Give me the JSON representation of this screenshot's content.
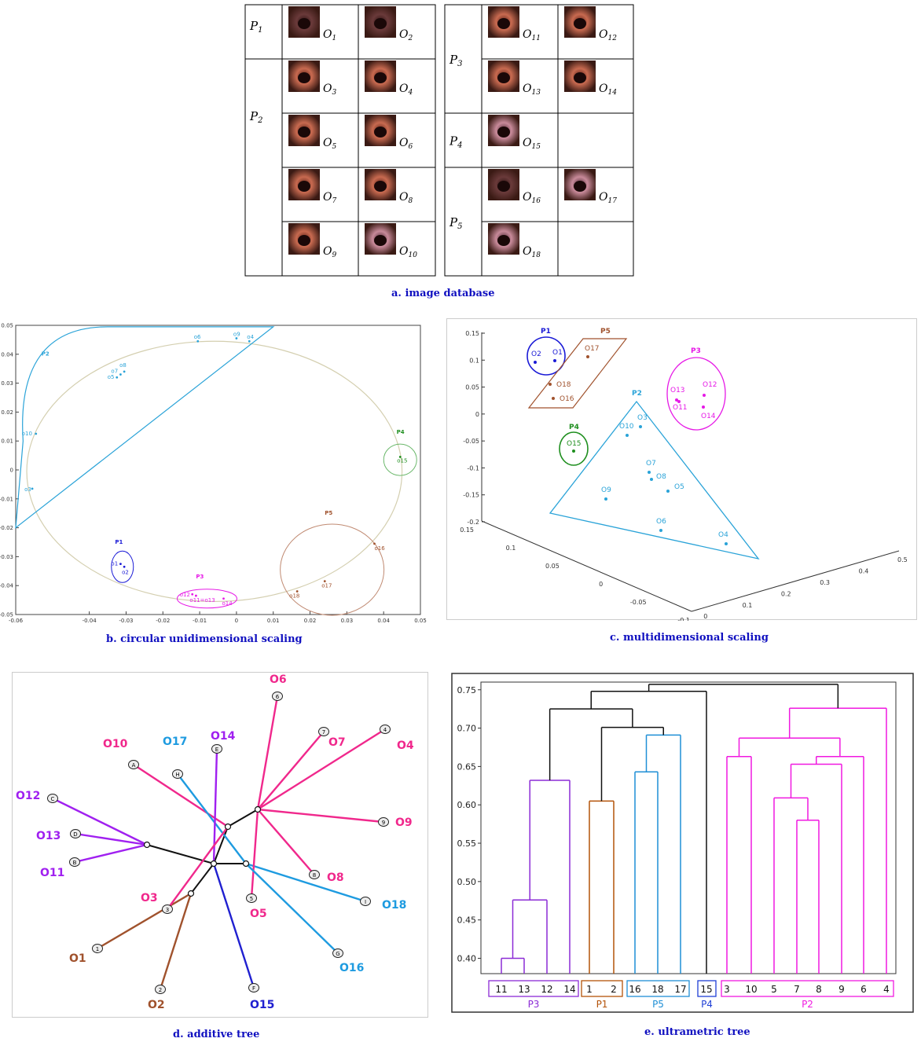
{
  "colors": {
    "P1": "#1a1ad6",
    "P2": "#2aa3d8",
    "P3": "#e619e6",
    "P4": "#1f8f1f",
    "P5": "#a0522d",
    "trunk": "#111111",
    "caption": "#1010c0",
    "tree_P2": "#f0288c",
    "tree_P3": "#a020f0",
    "tree_P5": "#1e9be0",
    "tree_P1": "#a0522d",
    "tree_P4": "#2020d0",
    "dendro_P3": "#8b2bd6",
    "dendro_P1": "#b45309",
    "dendro_P5": "#1f8fd6",
    "dendro_P4": "#1f3fd6",
    "dendro_P2": "#f019e0"
  },
  "captions": {
    "a": "a.   image database",
    "b": "b.   circular unidimensional scaling",
    "c": "c.   multidimensional scaling",
    "d": "d.   additive tree",
    "e": "e.   ultrametric tree"
  },
  "database": {
    "left": [
      {
        "patient": "P",
        "sub": "1",
        "images": [
          {
            "label": "O",
            "sub": "1",
            "tone": "dark"
          },
          {
            "label": "O",
            "sub": "2",
            "tone": "dark"
          }
        ]
      },
      {
        "patient": "P",
        "sub": "2",
        "rows": [
          [
            {
              "label": "O",
              "sub": "3",
              "tone": "red"
            },
            {
              "label": "O",
              "sub": "4",
              "tone": "red"
            }
          ],
          [
            {
              "label": "O",
              "sub": "5",
              "tone": "red"
            },
            {
              "label": "O",
              "sub": "6",
              "tone": "red"
            }
          ],
          [
            {
              "label": "O",
              "sub": "7",
              "tone": "red"
            },
            {
              "label": "O",
              "sub": "8",
              "tone": "red"
            }
          ],
          [
            {
              "label": "O",
              "sub": "9",
              "tone": "red"
            },
            {
              "label": "O",
              "sub": "10",
              "tone": "pink"
            }
          ]
        ]
      }
    ],
    "right": [
      {
        "patient": "P",
        "sub": "3",
        "rows": [
          [
            {
              "label": "O",
              "sub": "11",
              "tone": "red"
            },
            {
              "label": "O",
              "sub": "12",
              "tone": "red"
            }
          ],
          [
            {
              "label": "O",
              "sub": "13",
              "tone": "red"
            },
            {
              "label": "O",
              "sub": "14",
              "tone": "red"
            }
          ]
        ]
      },
      {
        "patient": "P",
        "sub": "4",
        "rows": [
          [
            {
              "label": "O",
              "sub": "15",
              "tone": "pink"
            }
          ]
        ]
      },
      {
        "patient": "P",
        "sub": "5",
        "rows": [
          [
            {
              "label": "O",
              "sub": "16",
              "tone": "dark"
            },
            {
              "label": "O",
              "sub": "17",
              "tone": "pink"
            }
          ],
          [
            {
              "label": "O",
              "sub": "18",
              "tone": "pink"
            }
          ]
        ]
      }
    ]
  },
  "chart_b": {
    "type": "scatter",
    "xlim": [
      -0.06,
      0.05
    ],
    "ylim": [
      -0.05,
      0.05
    ],
    "xticks": [
      "-0.06",
      "-0.04",
      "-0.03",
      "-0.02",
      "-0.01",
      "0",
      "0.01",
      "0.02",
      "0.03",
      "0.04",
      "0.05"
    ],
    "xtick_values": [
      -0.06,
      -0.04,
      -0.03,
      -0.02,
      -0.01,
      0,
      0.01,
      0.02,
      0.03,
      0.04,
      0.05
    ],
    "yticks": [
      "0.05",
      "0.04",
      "0.03",
      "0.02",
      "0.01",
      "0",
      "-0.01",
      "-0.02",
      "-0.03",
      "-0.04",
      "-0.05"
    ],
    "ytick_values": [
      0.05,
      0.04,
      0.03,
      0.02,
      0.01,
      0,
      -0.01,
      -0.02,
      -0.03,
      -0.04,
      -0.05
    ],
    "groups": [
      {
        "name": "P1",
        "color": "P1"
      },
      {
        "name": "P2",
        "color": "P2"
      },
      {
        "name": "P3",
        "color": "P3"
      },
      {
        "name": "P4",
        "color": "P4"
      },
      {
        "name": "P5",
        "color": "P5"
      }
    ],
    "points": [
      {
        "label": "o1",
        "group": "P1",
        "x": -0.0315,
        "y": -0.0325
      },
      {
        "label": "o2",
        "group": "P1",
        "x": -0.0305,
        "y": -0.0335
      },
      {
        "label": "o3",
        "group": "P2",
        "x": -0.0555,
        "y": -0.0065
      },
      {
        "label": "o5",
        "group": "P2",
        "x": -0.0325,
        "y": 0.032
      },
      {
        "label": "o6",
        "group": "P2",
        "x": -0.0105,
        "y": 0.0445
      },
      {
        "label": "o7",
        "group": "P2",
        "x": -0.0315,
        "y": 0.033
      },
      {
        "label": "o8",
        "group": "P2",
        "x": -0.0305,
        "y": 0.034
      },
      {
        "label": "o9",
        "group": "P2",
        "x": 0.0,
        "y": 0.0455
      },
      {
        "label": "o4",
        "group": "P2",
        "x": 0.0035,
        "y": 0.0445
      },
      {
        "label": "o10",
        "group": "P2",
        "x": -0.0545,
        "y": 0.0125
      },
      {
        "label": "o12",
        "group": "P3",
        "x": -0.012,
        "y": -0.043
      },
      {
        "label": "o11=o13",
        "group": "P3",
        "x": -0.011,
        "y": -0.0435
      },
      {
        "label": "o14",
        "group": "P3",
        "x": -0.0035,
        "y": -0.0445
      },
      {
        "label": "o15",
        "group": "P4",
        "x": 0.0445,
        "y": 0.0045
      },
      {
        "label": "o16",
        "group": "P5",
        "x": 0.0375,
        "y": -0.0255
      },
      {
        "label": "o17",
        "group": "P5",
        "x": 0.024,
        "y": -0.0385
      },
      {
        "label": "o18",
        "group": "P5",
        "x": 0.0165,
        "y": -0.042
      }
    ]
  },
  "chart_c": {
    "type": "scatter",
    "yticks": [
      "0.15",
      "0.1",
      "0.05",
      "0",
      "-0.05",
      "-0.1",
      "-0.15",
      "-0.2"
    ],
    "ytick_values": [
      0.15,
      0.1,
      0.05,
      0,
      -0.05,
      -0.1,
      -0.15,
      -0.2
    ],
    "left_axis_ticks": [
      "0.15",
      "0.1",
      "0.05",
      "0",
      "-0.05",
      "-0.1"
    ],
    "right_axis_ticks": [
      "0",
      "0.1",
      "0.2",
      "0.3",
      "0.4",
      "0.5"
    ],
    "groups": [
      "P1",
      "P2",
      "P3",
      "P4",
      "P5"
    ],
    "points": [
      {
        "label": "O1",
        "group": "P1"
      },
      {
        "label": "O2",
        "group": "P1"
      },
      {
        "label": "O17",
        "group": "P5"
      },
      {
        "label": "O18",
        "group": "P5"
      },
      {
        "label": "O16",
        "group": "P5"
      },
      {
        "label": "O13",
        "group": "P3"
      },
      {
        "label": "O12",
        "group": "P3"
      },
      {
        "label": "O11",
        "group": "P3"
      },
      {
        "label": "O14",
        "group": "P3"
      },
      {
        "label": "O3",
        "group": "P2"
      },
      {
        "label": "O10",
        "group": "P2"
      },
      {
        "label": "O7",
        "group": "P2"
      },
      {
        "label": "O8",
        "group": "P2"
      },
      {
        "label": "O5",
        "group": "P2"
      },
      {
        "label": "O9",
        "group": "P2"
      },
      {
        "label": "O6",
        "group": "P2"
      },
      {
        "label": "O4",
        "group": "P2"
      },
      {
        "label": "O15",
        "group": "P4"
      }
    ]
  },
  "additive_tree": {
    "leaves": [
      {
        "node": "A",
        "label": "O10",
        "group": "tree_P2"
      },
      {
        "node": "H",
        "label": "O17",
        "group": "tree_P5"
      },
      {
        "node": "E",
        "label": "O14",
        "group": "tree_P3"
      },
      {
        "node": "6",
        "label": "O6",
        "group": "tree_P2"
      },
      {
        "node": "7",
        "label": "O7",
        "group": "tree_P2"
      },
      {
        "node": "4",
        "label": "O4",
        "group": "tree_P2"
      },
      {
        "node": "9",
        "label": "O9",
        "group": "tree_P2"
      },
      {
        "node": "8",
        "label": "O8",
        "group": "tree_P2"
      },
      {
        "node": "I",
        "label": "O18",
        "group": "tree_P5"
      },
      {
        "node": "5",
        "label": "O5",
        "group": "tree_P2"
      },
      {
        "node": "G",
        "label": "O16",
        "group": "tree_P5"
      },
      {
        "node": "F",
        "label": "O15",
        "group": "tree_P4"
      },
      {
        "node": "2",
        "label": "O2",
        "group": "tree_P1"
      },
      {
        "node": "1",
        "label": "O1",
        "group": "tree_P1"
      },
      {
        "node": "3",
        "label": "O3",
        "group": "tree_P2"
      },
      {
        "node": "C",
        "label": "O12",
        "group": "tree_P3"
      },
      {
        "node": "D",
        "label": "O13",
        "group": "tree_P3"
      },
      {
        "node": "B",
        "label": "O11",
        "group": "tree_P3"
      }
    ]
  },
  "chart_e": {
    "type": "dendrogram",
    "ylim": [
      0.38,
      0.76
    ],
    "yticks": [
      "0.75",
      "0.70",
      "0.65",
      "0.60",
      "0.55",
      "0.50",
      "0.45",
      "0.40"
    ],
    "ytick_values": [
      0.75,
      0.7,
      0.65,
      0.6,
      0.55,
      0.5,
      0.45,
      0.4
    ],
    "leaf_order": [
      "11",
      "13",
      "12",
      "14",
      "1",
      "2",
      "16",
      "18",
      "17",
      "15",
      "3",
      "10",
      "5",
      "7",
      "8",
      "9",
      "6",
      "4"
    ],
    "groups": [
      {
        "name": "P3",
        "leaves": [
          "11",
          "13",
          "12",
          "14"
        ],
        "color": "dendro_P3"
      },
      {
        "name": "P1",
        "leaves": [
          "1",
          "2"
        ],
        "color": "dendro_P1"
      },
      {
        "name": "P5",
        "leaves": [
          "16",
          "18",
          "17"
        ],
        "color": "dendro_P5"
      },
      {
        "name": "P4",
        "leaves": [
          "15"
        ],
        "color": "dendro_P4"
      },
      {
        "name": "P2",
        "leaves": [
          "3",
          "10",
          "5",
          "7",
          "8",
          "9",
          "6",
          "4"
        ],
        "color": "dendro_P2"
      }
    ],
    "merges": [
      {
        "a": "11",
        "b": "13",
        "h": 0.4,
        "color": "dendro_P3"
      },
      {
        "a": "11|13",
        "b": "12",
        "h": 0.476,
        "color": "dendro_P3"
      },
      {
        "a": "11|13|12",
        "b": "14",
        "h": 0.632,
        "color": "dendro_P3"
      },
      {
        "a": "1",
        "b": "2",
        "h": 0.605,
        "color": "dendro_P1"
      },
      {
        "a": "16",
        "b": "18",
        "h": 0.643,
        "color": "dendro_P5"
      },
      {
        "a": "16|18",
        "b": "17",
        "h": 0.691,
        "color": "dendro_P5"
      },
      {
        "a": "1|2",
        "b": "16|18|17",
        "h": 0.701,
        "color": "trunk"
      },
      {
        "a": "11|13|12|14",
        "b": "1|2|16|18|17",
        "h": 0.725,
        "color": "trunk"
      },
      {
        "a": "7",
        "b": "8",
        "h": 0.58,
        "color": "dendro_P2"
      },
      {
        "a": "5",
        "b": "7|8",
        "h": 0.609,
        "color": "dendro_P2"
      },
      {
        "a": "5|7|8",
        "b": "9",
        "h": 0.653,
        "color": "dendro_P2"
      },
      {
        "a": "5|7|8|9",
        "b": "6",
        "h": 0.663,
        "color": "dendro_P2"
      },
      {
        "a": "3",
        "b": "10",
        "h": 0.663,
        "color": "dendro_P2"
      },
      {
        "a": "3|10",
        "b": "5|7|8|9|6",
        "h": 0.687,
        "color": "dendro_P2"
      },
      {
        "a": "3|10|5|7|8|9|6",
        "b": "4",
        "h": 0.726,
        "color": "dendro_P2"
      },
      {
        "a": "11|13|12|14|1|2|16|18|17",
        "b": "15",
        "h": 0.748,
        "color": "trunk"
      },
      {
        "a": "ALL_LEFT",
        "b": "ALL_P2",
        "h": 0.757,
        "color": "trunk"
      }
    ]
  }
}
